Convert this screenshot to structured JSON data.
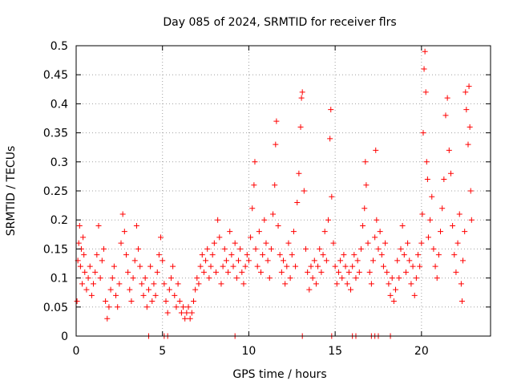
{
  "chart_data": {
    "type": "scatter",
    "title": "Day 085 of 2024, SRMTID for receiver flrs",
    "xlabel": "GPS time / hours",
    "ylabel": "SRMTID / TECUs",
    "xlim": [
      0,
      24
    ],
    "ylim": [
      0,
      0.5
    ],
    "xticks": [
      "0",
      "5",
      "10",
      "15",
      "20"
    ],
    "xtick_values": [
      0,
      5,
      10,
      15,
      20
    ],
    "yticks": [
      "0",
      "0.05",
      "0.1",
      "0.15",
      "0.2",
      "0.25",
      "0.3",
      "0.35",
      "0.4",
      "0.45",
      "0.5"
    ],
    "ytick_values": [
      0,
      0.05,
      0.1,
      0.15,
      0.2,
      0.25,
      0.3,
      0.35,
      0.4,
      0.45,
      0.5
    ],
    "grid": true,
    "marker": "+",
    "color": "#ff0000",
    "series": [
      {
        "points": [
          [
            0.05,
            0.06
          ],
          [
            0.1,
            0.13
          ],
          [
            0.15,
            0.16
          ],
          [
            0.2,
            0.19
          ],
          [
            0.25,
            0.12
          ],
          [
            0.3,
            0.15
          ],
          [
            0.35,
            0.09
          ],
          [
            0.4,
            0.17
          ],
          [
            0.45,
            0.14
          ],
          [
            0.5,
            0.11
          ],
          [
            0.6,
            0.08
          ],
          [
            0.7,
            0.1
          ],
          [
            0.8,
            0.12
          ],
          [
            0.9,
            0.07
          ],
          [
            1.0,
            0.09
          ],
          [
            1.1,
            0.11
          ],
          [
            1.2,
            0.14
          ],
          [
            1.3,
            0.19
          ],
          [
            1.4,
            0.1
          ],
          [
            1.5,
            0.13
          ],
          [
            1.6,
            0.15
          ],
          [
            1.7,
            0.06
          ],
          [
            1.8,
            0.03
          ],
          [
            1.9,
            0.05
          ],
          [
            2.0,
            0.08
          ],
          [
            2.1,
            0.1
          ],
          [
            2.2,
            0.12
          ],
          [
            2.3,
            0.07
          ],
          [
            2.4,
            0.05
          ],
          [
            2.5,
            0.09
          ],
          [
            2.6,
            0.16
          ],
          [
            2.7,
            0.21
          ],
          [
            2.8,
            0.18
          ],
          [
            2.9,
            0.14
          ],
          [
            3.0,
            0.11
          ],
          [
            3.1,
            0.08
          ],
          [
            3.2,
            0.06
          ],
          [
            3.3,
            0.1
          ],
          [
            3.4,
            0.13
          ],
          [
            3.5,
            0.19
          ],
          [
            3.6,
            0.15
          ],
          [
            3.7,
            0.12
          ],
          [
            3.8,
            0.09
          ],
          [
            3.9,
            0.07
          ],
          [
            4.0,
            0.1
          ],
          [
            4.1,
            0.05
          ],
          [
            4.2,
            0.08
          ],
          [
            4.3,
            0.12
          ],
          [
            4.4,
            0.06
          ],
          [
            4.5,
            0.09
          ],
          [
            4.6,
            0.07
          ],
          [
            4.7,
            0.11
          ],
          [
            4.8,
            0.14
          ],
          [
            4.9,
            0.17
          ],
          [
            5.0,
            0.13
          ],
          [
            5.1,
            0.09
          ],
          [
            5.2,
            0.06
          ],
          [
            5.3,
            0.04
          ],
          [
            5.4,
            0.08
          ],
          [
            5.5,
            0.1
          ],
          [
            5.6,
            0.12
          ],
          [
            5.7,
            0.07
          ],
          [
            5.8,
            0.05
          ],
          [
            5.9,
            0.09
          ],
          [
            6.0,
            0.06
          ],
          [
            6.1,
            0.04
          ],
          [
            6.2,
            0.05
          ],
          [
            6.3,
            0.03
          ],
          [
            6.4,
            0.04
          ],
          [
            6.5,
            0.05
          ],
          [
            6.6,
            0.03
          ],
          [
            6.7,
            0.04
          ],
          [
            6.8,
            0.06
          ],
          [
            6.9,
            0.08
          ],
          [
            7.0,
            0.1
          ],
          [
            7.1,
            0.09
          ],
          [
            7.2,
            0.12
          ],
          [
            7.3,
            0.14
          ],
          [
            7.4,
            0.11
          ],
          [
            7.5,
            0.13
          ],
          [
            7.6,
            0.15
          ],
          [
            7.7,
            0.1
          ],
          [
            7.8,
            0.12
          ],
          [
            7.9,
            0.14
          ],
          [
            8.0,
            0.16
          ],
          [
            8.1,
            0.11
          ],
          [
            8.2,
            0.2
          ],
          [
            8.3,
            0.17
          ],
          [
            8.4,
            0.09
          ],
          [
            8.5,
            0.12
          ],
          [
            8.6,
            0.15
          ],
          [
            8.7,
            0.13
          ],
          [
            8.8,
            0.11
          ],
          [
            8.9,
            0.18
          ],
          [
            9.0,
            0.14
          ],
          [
            9.1,
            0.12
          ],
          [
            9.2,
            0.16
          ],
          [
            9.3,
            0.1
          ],
          [
            9.4,
            0.13
          ],
          [
            9.5,
            0.15
          ],
          [
            9.6,
            0.11
          ],
          [
            9.7,
            0.09
          ],
          [
            9.8,
            0.12
          ],
          [
            9.9,
            0.14
          ],
          [
            10.0,
            0.13
          ],
          [
            10.1,
            0.17
          ],
          [
            10.2,
            0.22
          ],
          [
            10.3,
            0.26
          ],
          [
            10.35,
            0.3
          ],
          [
            10.4,
            0.15
          ],
          [
            10.5,
            0.12
          ],
          [
            10.6,
            0.18
          ],
          [
            10.7,
            0.11
          ],
          [
            10.8,
            0.14
          ],
          [
            10.9,
            0.2
          ],
          [
            11.0,
            0.16
          ],
          [
            11.1,
            0.13
          ],
          [
            11.2,
            0.1
          ],
          [
            11.3,
            0.15
          ],
          [
            11.4,
            0.21
          ],
          [
            11.5,
            0.26
          ],
          [
            11.55,
            0.33
          ],
          [
            11.6,
            0.37
          ],
          [
            11.7,
            0.19
          ],
          [
            11.8,
            0.14
          ],
          [
            11.9,
            0.11
          ],
          [
            12.0,
            0.13
          ],
          [
            12.1,
            0.09
          ],
          [
            12.2,
            0.12
          ],
          [
            12.3,
            0.16
          ],
          [
            12.4,
            0.1
          ],
          [
            12.5,
            0.14
          ],
          [
            12.6,
            0.18
          ],
          [
            12.7,
            0.12
          ],
          [
            12.8,
            0.23
          ],
          [
            12.9,
            0.28
          ],
          [
            13.0,
            0.36
          ],
          [
            13.05,
            0.41
          ],
          [
            13.1,
            0.42
          ],
          [
            13.2,
            0.25
          ],
          [
            13.3,
            0.15
          ],
          [
            13.4,
            0.11
          ],
          [
            13.5,
            0.08
          ],
          [
            13.6,
            0.12
          ],
          [
            13.7,
            0.1
          ],
          [
            13.8,
            0.13
          ],
          [
            13.9,
            0.09
          ],
          [
            14.0,
            0.12
          ],
          [
            14.1,
            0.15
          ],
          [
            14.2,
            0.11
          ],
          [
            14.3,
            0.14
          ],
          [
            14.4,
            0.18
          ],
          [
            14.5,
            0.13
          ],
          [
            14.6,
            0.2
          ],
          [
            14.7,
            0.34
          ],
          [
            14.75,
            0.39
          ],
          [
            14.8,
            0.24
          ],
          [
            14.9,
            0.16
          ],
          [
            15.0,
            0.12
          ],
          [
            15.1,
            0.09
          ],
          [
            15.2,
            0.11
          ],
          [
            15.3,
            0.13
          ],
          [
            15.4,
            0.1
          ],
          [
            15.5,
            0.14
          ],
          [
            15.6,
            0.12
          ],
          [
            15.7,
            0.09
          ],
          [
            15.8,
            0.11
          ],
          [
            15.9,
            0.08
          ],
          [
            16.0,
            0.12
          ],
          [
            16.1,
            0.14
          ],
          [
            16.2,
            0.1
          ],
          [
            16.3,
            0.13
          ],
          [
            16.4,
            0.11
          ],
          [
            16.5,
            0.15
          ],
          [
            16.6,
            0.19
          ],
          [
            16.7,
            0.22
          ],
          [
            16.75,
            0.3
          ],
          [
            16.8,
            0.26
          ],
          [
            16.9,
            0.16
          ],
          [
            17.0,
            0.11
          ],
          [
            17.1,
            0.09
          ],
          [
            17.2,
            0.13
          ],
          [
            17.3,
            0.17
          ],
          [
            17.35,
            0.32
          ],
          [
            17.4,
            0.2
          ],
          [
            17.5,
            0.15
          ],
          [
            17.6,
            0.18
          ],
          [
            17.7,
            0.14
          ],
          [
            17.8,
            0.12
          ],
          [
            17.9,
            0.16
          ],
          [
            18.0,
            0.11
          ],
          [
            18.1,
            0.09
          ],
          [
            18.2,
            0.07
          ],
          [
            18.3,
            0.1
          ],
          [
            18.4,
            0.06
          ],
          [
            18.5,
            0.08
          ],
          [
            18.6,
            0.13
          ],
          [
            18.7,
            0.1
          ],
          [
            18.8,
            0.15
          ],
          [
            18.9,
            0.19
          ],
          [
            19.0,
            0.14
          ],
          [
            19.1,
            0.11
          ],
          [
            19.2,
            0.16
          ],
          [
            19.3,
            0.13
          ],
          [
            19.4,
            0.09
          ],
          [
            19.5,
            0.12
          ],
          [
            19.6,
            0.07
          ],
          [
            19.7,
            0.1
          ],
          [
            19.8,
            0.14
          ],
          [
            19.9,
            0.12
          ],
          [
            20.0,
            0.16
          ],
          [
            20.05,
            0.21
          ],
          [
            20.1,
            0.35
          ],
          [
            20.15,
            0.46
          ],
          [
            20.2,
            0.49
          ],
          [
            20.25,
            0.42
          ],
          [
            20.3,
            0.3
          ],
          [
            20.35,
            0.27
          ],
          [
            20.4,
            0.17
          ],
          [
            20.5,
            0.2
          ],
          [
            20.6,
            0.24
          ],
          [
            20.7,
            0.15
          ],
          [
            20.8,
            0.12
          ],
          [
            20.9,
            0.1
          ],
          [
            21.0,
            0.14
          ],
          [
            21.1,
            0.18
          ],
          [
            21.2,
            0.22
          ],
          [
            21.3,
            0.27
          ],
          [
            21.4,
            0.38
          ],
          [
            21.5,
            0.41
          ],
          [
            21.6,
            0.32
          ],
          [
            21.7,
            0.28
          ],
          [
            21.8,
            0.19
          ],
          [
            21.9,
            0.14
          ],
          [
            22.0,
            0.11
          ],
          [
            22.1,
            0.16
          ],
          [
            22.2,
            0.21
          ],
          [
            22.3,
            0.09
          ],
          [
            22.35,
            0.06
          ],
          [
            22.4,
            0.13
          ],
          [
            22.5,
            0.18
          ],
          [
            22.55,
            0.42
          ],
          [
            22.6,
            0.39
          ],
          [
            22.7,
            0.33
          ],
          [
            22.75,
            0.43
          ],
          [
            22.8,
            0.36
          ],
          [
            22.85,
            0.25
          ],
          [
            22.9,
            0.2
          ]
        ]
      }
    ],
    "zero_markers": [
      4.2,
      5.1,
      5.3,
      9.2,
      13.1,
      14.8,
      16.0,
      16.2,
      17.1,
      17.3,
      17.5,
      18.2
    ]
  }
}
